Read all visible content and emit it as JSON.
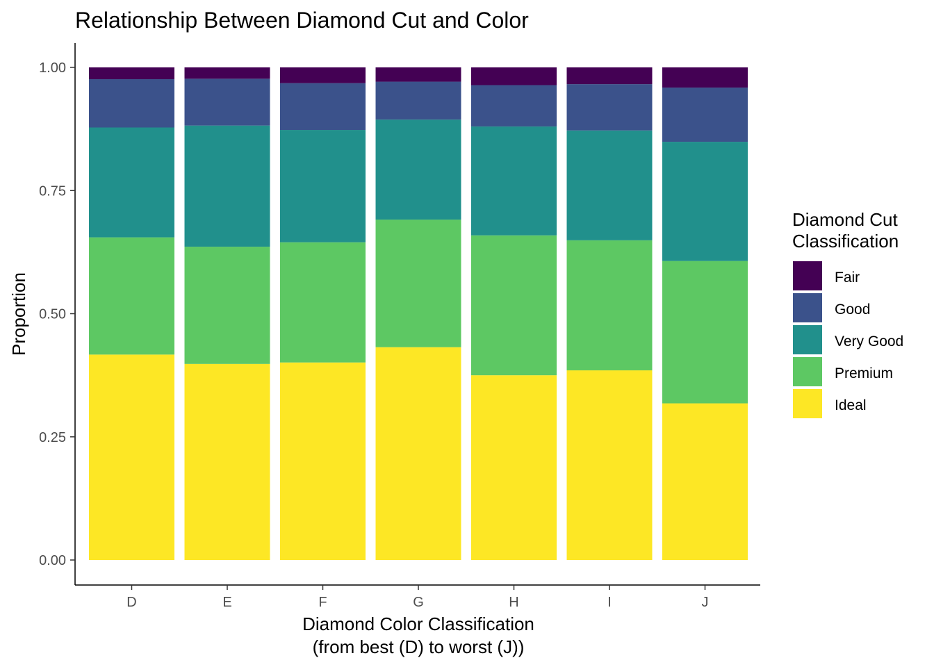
{
  "chart_data": {
    "type": "bar",
    "stacked": true,
    "title": "Relationship Between Diamond Cut and Color",
    "xlabel_lines": [
      "Diamond Color Classification",
      "(from best (D) to worst (J))"
    ],
    "ylabel": "Proportion",
    "ylim": [
      0,
      1
    ],
    "yticks": [
      "0.00",
      "0.25",
      "0.50",
      "0.75",
      "1.00"
    ],
    "ytick_values": [
      0,
      0.25,
      0.5,
      0.75,
      1.0
    ],
    "categories": [
      "D",
      "E",
      "F",
      "G",
      "H",
      "I",
      "J"
    ],
    "grid": false,
    "legend": {
      "title_lines": [
        "Diamond Cut",
        "Classification"
      ],
      "placement": "right",
      "entries": [
        "Fair",
        "Good",
        "Very Good",
        "Premium",
        "Ideal"
      ]
    },
    "series": [
      {
        "name": "Ideal",
        "color": "#FDE725",
        "values": [
          0.417,
          0.398,
          0.401,
          0.432,
          0.375,
          0.385,
          0.318
        ]
      },
      {
        "name": "Premium",
        "color": "#5DC863",
        "values": [
          0.238,
          0.238,
          0.244,
          0.259,
          0.284,
          0.264,
          0.289
        ]
      },
      {
        "name": "Very Good",
        "color": "#21908C",
        "values": [
          0.223,
          0.246,
          0.228,
          0.203,
          0.221,
          0.223,
          0.242
        ]
      },
      {
        "name": "Good",
        "color": "#3B528B",
        "values": [
          0.098,
          0.095,
          0.095,
          0.077,
          0.084,
          0.094,
          0.11
        ]
      },
      {
        "name": "Fair",
        "color": "#440154",
        "values": [
          0.024,
          0.023,
          0.032,
          0.029,
          0.036,
          0.034,
          0.041
        ]
      }
    ]
  }
}
